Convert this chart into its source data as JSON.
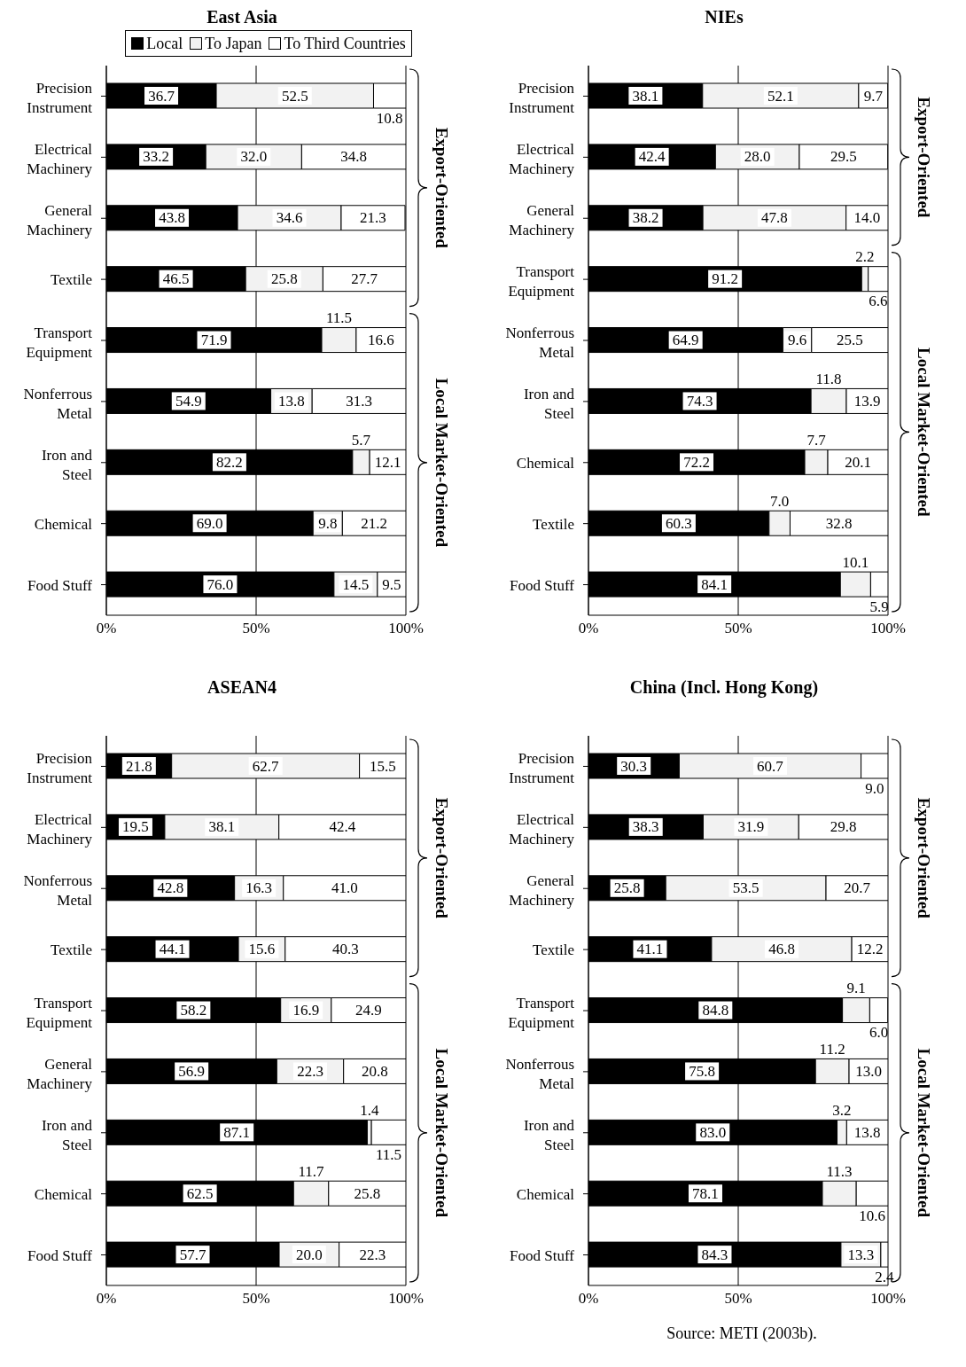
{
  "chart_data": [
    {
      "type": "bar",
      "orientation": "horizontal",
      "stacked": true,
      "title": "East Asia",
      "legend": "top",
      "grid": "x",
      "xlim": [
        0,
        100
      ],
      "xticks": [
        {
          "value": 0,
          "label": "0%"
        },
        {
          "value": 50,
          "label": "50%"
        },
        {
          "value": 100,
          "label": "100%"
        }
      ],
      "categories": [
        "Precision Instrument",
        "Electrical Machinery",
        "General Machinery",
        "Textile",
        "Transport Equipment",
        "Nonferrous Metal",
        "Iron and Steel",
        "Chemical",
        "Food Stuff"
      ],
      "series": [
        {
          "name": "Local",
          "color": "#000000",
          "values": [
            36.7,
            33.2,
            43.8,
            46.5,
            71.9,
            54.9,
            82.2,
            69.0,
            76.0
          ],
          "value_labels": [
            "36.7",
            "33.2",
            "43.8",
            "46.5",
            "71.9",
            "54.9",
            "82.2",
            "69.0",
            "76.0"
          ]
        },
        {
          "name": "To Japan",
          "color": "#f2f2f2",
          "values": [
            52.5,
            32.0,
            34.6,
            25.8,
            11.5,
            13.8,
            5.7,
            9.8,
            14.5
          ],
          "value_labels": [
            "52.5",
            "32.0",
            "34.6",
            "25.8",
            "11.5",
            "13.8",
            "5.7",
            "9.8",
            "14.5"
          ]
        },
        {
          "name": "To Third Countries",
          "color": "#ffffff",
          "values": [
            10.8,
            34.8,
            21.3,
            27.7,
            16.6,
            31.3,
            12.1,
            21.2,
            9.5
          ],
          "value_labels": [
            "10.8",
            "34.8",
            "21.3",
            "27.7",
            "16.6",
            "31.3",
            "12.1",
            "21.2",
            "9.5"
          ]
        }
      ],
      "annotations": [
        "Export-Oriented",
        "Local Market-Oriented"
      ]
    },
    {
      "type": "bar",
      "orientation": "horizontal",
      "stacked": true,
      "title": "NIEs",
      "grid": "x",
      "xlim": [
        0,
        100
      ],
      "xticks": [
        {
          "value": 0,
          "label": "0%"
        },
        {
          "value": 50,
          "label": "50%"
        },
        {
          "value": 100,
          "label": "100%"
        }
      ],
      "categories": [
        "Precision Instrument",
        "Electrical Machinery",
        "General Machinery",
        "Transport Equipment",
        "Nonferrous Metal",
        "Iron and Steel",
        "Chemical",
        "Textile",
        "Food Stuff"
      ],
      "series": [
        {
          "color": "#000000",
          "values": [
            38.1,
            42.4,
            38.2,
            91.2,
            64.9,
            74.3,
            72.2,
            60.3,
            84.1
          ],
          "value_labels": [
            "38.1",
            "42.4",
            "38.2",
            "91.2",
            "64.9",
            "74.3",
            "72.2",
            "60.3",
            "84.1"
          ]
        },
        {
          "color": "#f2f2f2",
          "values": [
            52.1,
            28.0,
            47.8,
            2.2,
            9.6,
            11.8,
            7.7,
            7.0,
            10.1
          ],
          "value_labels": [
            "52.1",
            "28.0",
            "47.8",
            "2.2",
            "9.6",
            "11.8",
            "7.7",
            "7.0",
            "10.1"
          ]
        },
        {
          "color": "#ffffff",
          "values": [
            9.7,
            29.5,
            14.0,
            6.6,
            25.5,
            13.9,
            20.1,
            32.8,
            5.9
          ],
          "value_labels": [
            "9.7",
            "29.5",
            "14.0",
            "6.6",
            "25.5",
            "13.9",
            "20.1",
            "32.8",
            "5.9"
          ]
        }
      ],
      "annotations": [
        "Export-Oriented",
        "Local Market-Oriented"
      ]
    },
    {
      "type": "bar",
      "orientation": "horizontal",
      "stacked": true,
      "title": "ASEAN4",
      "grid": "x",
      "xlim": [
        0,
        100
      ],
      "xticks": [
        {
          "value": 0,
          "label": "0%"
        },
        {
          "value": 50,
          "label": "50%"
        },
        {
          "value": 100,
          "label": "100%"
        }
      ],
      "categories": [
        "Precision Instrument",
        "Electrical Machinery",
        "Nonferrous Metal",
        "Textile",
        "Transport Equipment",
        "General Machinery",
        "Iron and Steel",
        "Chemical",
        "Food Stuff"
      ],
      "series": [
        {
          "color": "#000000",
          "values": [
            21.8,
            19.5,
            42.8,
            44.1,
            58.2,
            56.9,
            87.1,
            62.5,
            57.7
          ],
          "value_labels": [
            "21.8",
            "19.5",
            "42.8",
            "44.1",
            "58.2",
            "56.9",
            "87.1",
            "62.5",
            "57.7"
          ]
        },
        {
          "color": "#f2f2f2",
          "values": [
            62.7,
            38.1,
            16.3,
            15.6,
            16.9,
            22.3,
            1.4,
            11.7,
            20.0
          ],
          "value_labels": [
            "62.7",
            "38.1",
            "16.3",
            "15.6",
            "16.9",
            "22.3",
            "1.4",
            "11.7",
            "20.0"
          ]
        },
        {
          "color": "#ffffff",
          "values": [
            15.5,
            42.4,
            41.0,
            40.3,
            24.9,
            20.8,
            11.5,
            25.8,
            22.3
          ],
          "value_labels": [
            "15.5",
            "42.4",
            "41.0",
            "40.3",
            "24.9",
            "20.8",
            "11.5",
            "25.8",
            "22.3"
          ]
        }
      ],
      "annotations": [
        "Export-Oriented",
        "Local Market-Oriented"
      ]
    },
    {
      "type": "bar",
      "orientation": "horizontal",
      "stacked": true,
      "title": "China (Incl. Hong Kong)",
      "grid": "x",
      "xlim": [
        0,
        100
      ],
      "xticks": [
        {
          "value": 0,
          "label": "0%"
        },
        {
          "value": 50,
          "label": "50%"
        },
        {
          "value": 100,
          "label": "100%"
        }
      ],
      "categories": [
        "Precision Instrument",
        "Electrical Machinery",
        "General Machinery",
        "Textile",
        "Transport Equipment",
        "Nonferrous Metal",
        "Iron and Steel",
        "Chemical",
        "Food Stuff"
      ],
      "series": [
        {
          "color": "#000000",
          "values": [
            30.3,
            38.3,
            25.8,
            41.1,
            84.8,
            75.8,
            83.0,
            78.1,
            84.3
          ],
          "value_labels": [
            "30.3",
            "38.3",
            "25.8",
            "41.1",
            "84.8",
            "75.8",
            "83.0",
            "78.1",
            "84.3"
          ]
        },
        {
          "color": "#f2f2f2",
          "values": [
            60.7,
            31.9,
            53.5,
            46.8,
            9.1,
            11.2,
            3.2,
            11.3,
            13.3
          ],
          "value_labels": [
            "60.7",
            "31.9",
            "53.5",
            "46.8",
            "9.1",
            "11.2",
            "3.2",
            "11.3",
            "13.3"
          ]
        },
        {
          "color": "#ffffff",
          "values": [
            9.0,
            29.8,
            20.7,
            12.2,
            6.0,
            13.0,
            13.8,
            10.6,
            2.4
          ],
          "value_labels": [
            "9.0",
            "29.8",
            "20.7",
            "12.2",
            "6.0",
            "13.0",
            "13.8",
            "10.6",
            "2.4"
          ]
        }
      ],
      "annotations": [
        "Export-Oriented",
        "Local Market-Oriented",
        "Source: METI (2003b)."
      ]
    }
  ]
}
